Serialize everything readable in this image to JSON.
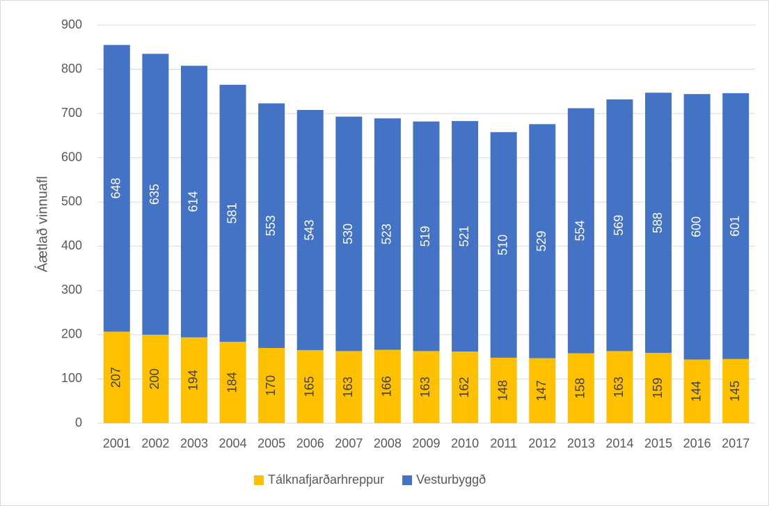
{
  "chart_data": {
    "type": "bar",
    "stacked": true,
    "y_label": "Áætlað vinnuafl",
    "categories": [
      "2001",
      "2002",
      "2003",
      "2004",
      "2005",
      "2006",
      "2007",
      "2008",
      "2009",
      "2010",
      "2011",
      "2012",
      "2013",
      "2014",
      "2015",
      "2016",
      "2017"
    ],
    "series": [
      {
        "name": "Tálknafjarðarhreppur",
        "color": "#ffc000",
        "label_color": "#404040",
        "values": [
          207,
          200,
          194,
          184,
          170,
          165,
          163,
          166,
          163,
          162,
          148,
          147,
          158,
          163,
          159,
          144,
          145
        ]
      },
      {
        "name": "Vesturbyggð",
        "color": "#4472c4",
        "label_color": "#ffffff",
        "values": [
          648,
          635,
          614,
          581,
          553,
          543,
          530,
          523,
          519,
          521,
          510,
          529,
          554,
          569,
          588,
          600,
          601
        ]
      }
    ],
    "ylim": [
      0,
      900
    ],
    "yticks": [
      0,
      100,
      200,
      300,
      400,
      500,
      600,
      700,
      800,
      900
    ],
    "grid": true,
    "legend": "bottom"
  }
}
